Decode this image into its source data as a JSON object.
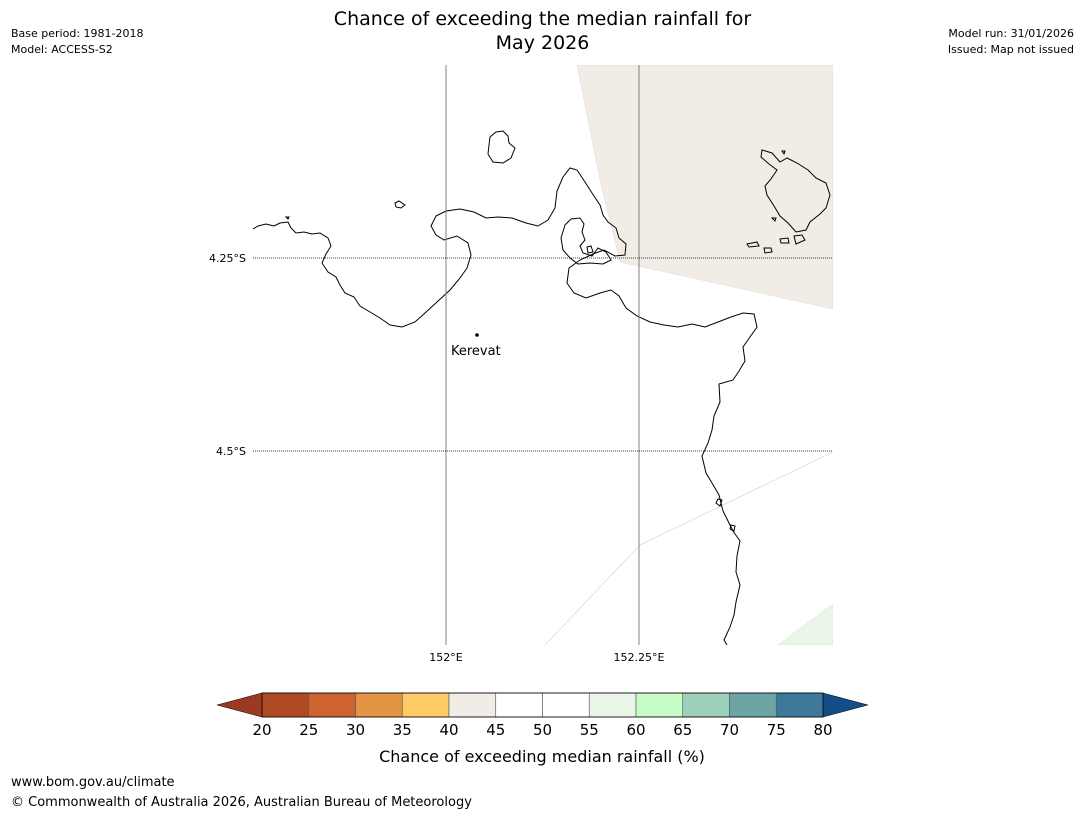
{
  "header": {
    "base_period": "Base period: 1981-2018",
    "model": "Model: ACCESS-S2",
    "model_run": "Model run: 31/01/2026",
    "issued": "Issued: Map not issued",
    "title_line1": "Chance of exceeding the median rainfall for",
    "title_line2": "May 2026"
  },
  "map": {
    "lat_labels": [
      "4.25°S",
      "4.5°S"
    ],
    "lon_labels": [
      "152°E",
      "152.25°E"
    ],
    "place": "Kerevat",
    "lat_values": [
      -4.25,
      -4.5
    ],
    "lon_values": [
      152.0,
      152.25
    ]
  },
  "legend": {
    "title": "Chance of exceeding median rainfall (%)",
    "ticks": [
      "20",
      "25",
      "30",
      "35",
      "40",
      "45",
      "50",
      "55",
      "60",
      "65",
      "70",
      "75",
      "80"
    ],
    "colors": [
      "#b04a25",
      "#cf632f",
      "#e39444",
      "#fdcc67",
      "#f1ece5",
      "#ffffff",
      "#ffffff",
      "#e9f6e8",
      "#c8fcc6",
      "#9dd0b8",
      "#6da5a5",
      "#3d799a"
    ],
    "under_color": "#9a3a22",
    "over_color": "#134e88"
  },
  "footer": {
    "url": "www.bom.gov.au/climate",
    "copyright": "© Commonwealth of Australia 2026, Australian Bureau of Meteorology"
  }
}
